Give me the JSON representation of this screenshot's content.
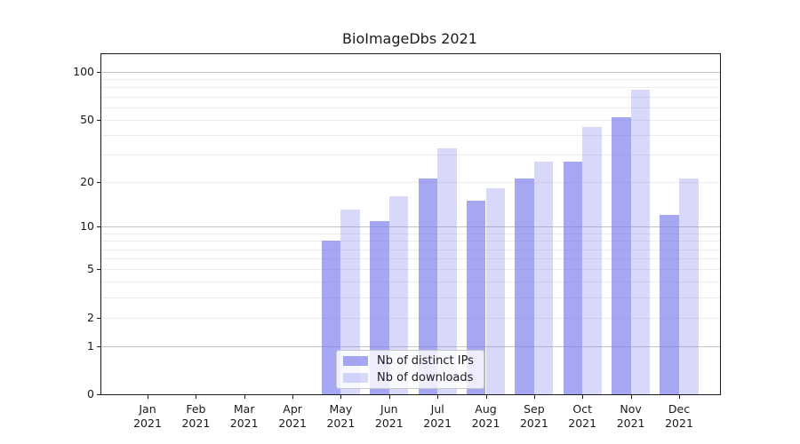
{
  "chart_data": {
    "type": "bar",
    "title": "BioImageDbs 2021",
    "categories": [
      "Jan",
      "Feb",
      "Mar",
      "Apr",
      "May",
      "Jun",
      "Jul",
      "Aug",
      "Sep",
      "Oct",
      "Nov",
      "Dec"
    ],
    "category_year": "2021",
    "series": [
      {
        "name": "Nb of distinct IPs",
        "fill": "rgba(122,126,237,0.68)",
        "values": [
          0,
          0,
          0,
          0,
          8,
          11,
          21,
          15,
          21,
          27,
          52,
          12
        ]
      },
      {
        "name": "Nb of downloads",
        "fill": "rgba(122,126,237,0.30)",
        "values": [
          0,
          0,
          0,
          0,
          13,
          16,
          33,
          18,
          27,
          45,
          77,
          21
        ]
      }
    ],
    "y_ticks": [
      0,
      1,
      2,
      5,
      10,
      20,
      50,
      100
    ],
    "y_scale": "log10(1+value)",
    "ylim": [
      0,
      130
    ],
    "grid": "on",
    "grid_minor_values": [
      2,
      3,
      4,
      5,
      6,
      7,
      8,
      9,
      20,
      30,
      40,
      50,
      60,
      70,
      80,
      90
    ],
    "grid_major_values": [
      1,
      10,
      100
    ],
    "legend_position": "lower center",
    "colors": {
      "bar_distinct_ips_on_white": "#a5a7f3",
      "bar_downloads_on_white": "#d7d8f9",
      "grid_major": "#c4c4c4",
      "grid_minor": "#ededed",
      "axis": "#1a1a1a"
    }
  }
}
